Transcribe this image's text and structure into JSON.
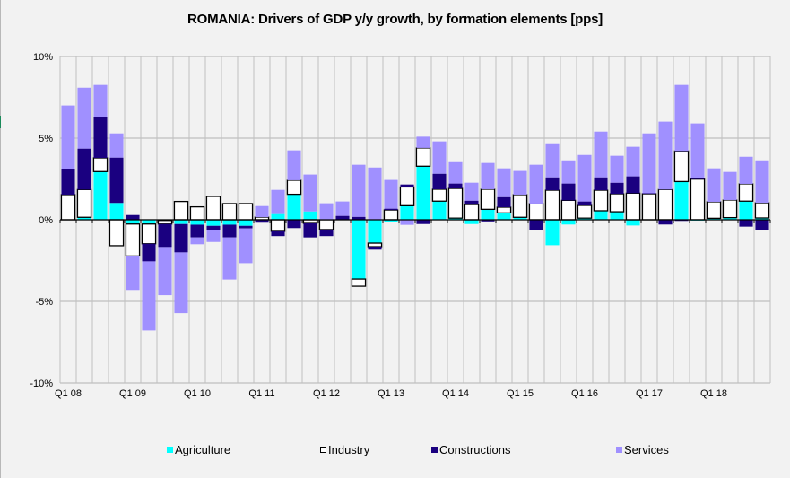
{
  "chart_data": {
    "type": "bar",
    "stacked": true,
    "title": "ROMANIA: Drivers of GDP y/y growth, by formation elements [pps]",
    "xlabel": "",
    "ylabel": "",
    "ylim": [
      -10,
      10
    ],
    "yticks": [
      10,
      5,
      0,
      -5,
      -10
    ],
    "ytick_labels": [
      "10%",
      "5%",
      "0%",
      "-5%",
      "-10%"
    ],
    "grid": true,
    "legend_position": "bottom",
    "categories": [
      "Q1 08",
      "Q2 08",
      "Q3 08",
      "Q4 08",
      "Q1 09",
      "Q2 09",
      "Q3 09",
      "Q4 09",
      "Q1 10",
      "Q2 10",
      "Q3 10",
      "Q4 10",
      "Q1 11",
      "Q2 11",
      "Q3 11",
      "Q4 11",
      "Q1 12",
      "Q2 12",
      "Q3 12",
      "Q4 12",
      "Q1 13",
      "Q2 13",
      "Q3 13",
      "Q4 13",
      "Q1 14",
      "Q2 14",
      "Q3 14",
      "Q4 14",
      "Q1 15",
      "Q2 15",
      "Q3 15",
      "Q4 15",
      "Q1 16",
      "Q2 16",
      "Q3 16",
      "Q4 16",
      "Q1 17",
      "Q2 17",
      "Q3 17",
      "Q4 17",
      "Q1 18",
      "Q2 18",
      "Q3 18",
      "Q4 18"
    ],
    "xtick_labels": [
      "Q1 08",
      "Q1 09",
      "Q1 10",
      "Q1 11",
      "Q1 12",
      "Q1 13",
      "Q1 14",
      "Q1 15",
      "Q1 16",
      "Q1 17",
      "Q1 18"
    ],
    "series": [
      {
        "name": "Agriculture",
        "color": "#00ffff",
        "values": [
          0.0,
          0.15,
          2.95,
          1.03,
          -0.26,
          -0.26,
          -0.04,
          -0.26,
          -0.3,
          -0.37,
          -0.3,
          -0.37,
          0.0,
          0.35,
          1.56,
          0.51,
          0.0,
          0.0,
          -3.63,
          -1.43,
          -0.13,
          0.86,
          3.28,
          1.14,
          0.1,
          -0.26,
          0.64,
          0.42,
          0.15,
          0.0,
          -1.56,
          -0.29,
          0.1,
          0.55,
          0.49,
          -0.35,
          0.0,
          0.0,
          2.34,
          -0.05,
          0.09,
          0.13,
          1.14,
          0.11
        ]
      },
      {
        "name": "Industry",
        "color": "#ffffff",
        "values": [
          1.54,
          1.7,
          0.84,
          -1.59,
          -1.96,
          -1.21,
          -0.22,
          1.12,
          0.79,
          1.43,
          0.99,
          0.99,
          0.16,
          -0.71,
          0.86,
          -0.22,
          -0.6,
          0.0,
          -0.44,
          -0.22,
          0.6,
          1.15,
          1.12,
          0.73,
          1.82,
          0.93,
          1.23,
          0.35,
          1.39,
          0.99,
          1.81,
          1.19,
          0.78,
          1.26,
          1.1,
          1.63,
          1.59,
          1.85,
          1.87,
          2.49,
          1.01,
          1.08,
          1.06,
          0.93
        ]
      },
      {
        "name": "Constructions",
        "color": "#1a0080",
        "values": [
          1.56,
          2.51,
          2.49,
          2.78,
          0.29,
          -1.08,
          -1.41,
          -1.74,
          -0.78,
          -0.25,
          -0.78,
          -0.16,
          -0.18,
          -0.29,
          -0.51,
          -0.86,
          -0.4,
          0.24,
          0.18,
          -0.18,
          0.08,
          0.15,
          -0.26,
          0.95,
          0.3,
          0.24,
          -0.1,
          0.62,
          0.0,
          -0.62,
          0.79,
          1.03,
          0.24,
          0.79,
          0.68,
          1.03,
          0.04,
          -0.29,
          -0.07,
          0.07,
          0.0,
          0.0,
          -0.42,
          -0.64
        ]
      },
      {
        "name": "Services",
        "color": "#a090ff",
        "values": [
          3.9,
          3.73,
          1.98,
          1.48,
          -2.08,
          -4.23,
          -2.95,
          -3.72,
          -0.42,
          -0.74,
          -2.58,
          -2.13,
          0.68,
          1.48,
          1.83,
          2.26,
          1.01,
          0.88,
          3.19,
          3.2,
          1.76,
          -0.31,
          0.69,
          1.98,
          1.31,
          1.1,
          1.61,
          1.76,
          1.45,
          2.38,
          2.03,
          1.42,
          2.85,
          2.8,
          1.65,
          1.81,
          3.66,
          4.16,
          4.05,
          3.34,
          2.05,
          1.72,
          1.66,
          2.6
        ]
      }
    ]
  },
  "legend": {
    "items": [
      {
        "label": "Agriculture",
        "color": "#00ffff"
      },
      {
        "label": "Industry",
        "color": "#ffffff"
      },
      {
        "label": "Constructions",
        "color": "#1a0080"
      },
      {
        "label": "Services",
        "color": "#a090ff"
      }
    ]
  },
  "colors": {
    "background": "#f2f2f2",
    "grid": "#c0c0c0",
    "axis": "#000000"
  }
}
